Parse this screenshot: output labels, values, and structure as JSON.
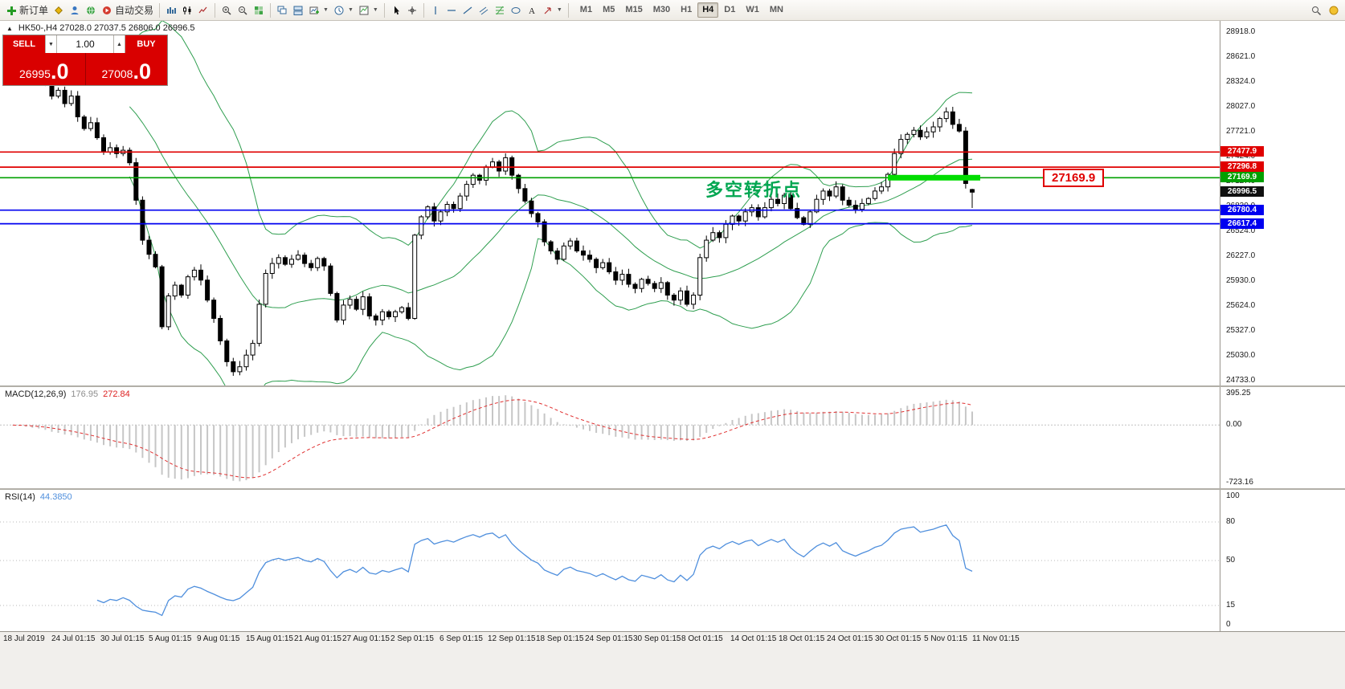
{
  "toolbar": {
    "left_items": [
      {
        "name": "new-order-button",
        "icon": "plus-icon",
        "label": "新订单"
      },
      {
        "name": "favorites-button",
        "icon": "diamond-icon"
      },
      {
        "name": "profile-button",
        "icon": "user-icon"
      },
      {
        "name": "community-profile-button",
        "icon": "globe-icon"
      },
      {
        "name": "autotrading-button",
        "icon": "autotrade-icon",
        "label": "自动交易"
      },
      {
        "type": "divider"
      },
      {
        "name": "bar-chart-button",
        "icon": "bar-chart-icon"
      },
      {
        "name": "candlestick-chart-button",
        "icon": "candle-chart-icon"
      },
      {
        "name": "line-chart-button",
        "icon": "line-chart-icon"
      },
      {
        "type": "divider"
      },
      {
        "name": "zoom-in-button",
        "icon": "zoom-in-icon"
      },
      {
        "name": "zoom-out-button",
        "icon": "zoom-out-icon"
      },
      {
        "name": "tile-windows-button",
        "icon": "tile-icon"
      },
      {
        "type": "divider"
      },
      {
        "name": "arrange-cascade-button",
        "icon": "cascade-icon"
      },
      {
        "name": "arrange-tile-button",
        "icon": "tile-h-icon"
      },
      {
        "name": "new-chart-button",
        "icon": "new-chart-icon",
        "caret": true
      },
      {
        "name": "period-button",
        "icon": "clock-icon",
        "caret": true
      },
      {
        "name": "template-button",
        "icon": "template-icon",
        "caret": true
      },
      {
        "type": "divider"
      },
      {
        "name": "cursor-button",
        "icon": "cursor-icon"
      },
      {
        "name": "crosshair-button",
        "icon": "crosshair-icon"
      },
      {
        "type": "divider"
      },
      {
        "name": "vertical-line-button",
        "icon": "vline-icon"
      },
      {
        "name": "horizontal-line-button",
        "icon": "hline-icon"
      },
      {
        "name": "trendline-button",
        "icon": "trendline-icon"
      },
      {
        "name": "channel-button",
        "icon": "channel-icon"
      },
      {
        "name": "fibonacci-button",
        "icon": "fibo-icon"
      },
      {
        "name": "shapes-button",
        "icon": "ellipse-icon"
      },
      {
        "name": "text-label-button",
        "icon": "text-icon"
      },
      {
        "name": "arrows-button",
        "icon": "arrow-icon",
        "caret": true
      },
      {
        "type": "divider"
      }
    ],
    "timeframes": [
      {
        "label": "M1"
      },
      {
        "label": "M5"
      },
      {
        "label": "M15"
      },
      {
        "label": "M30"
      },
      {
        "label": "H1"
      },
      {
        "label": "H4",
        "active": true
      },
      {
        "label": "D1"
      },
      {
        "label": "W1"
      },
      {
        "label": "MN"
      }
    ],
    "right_items": [
      {
        "name": "search-button",
        "icon": "search-icon"
      },
      {
        "name": "community-button",
        "icon": "community-icon"
      }
    ]
  },
  "chart_header": {
    "collapse_glyph": "▲",
    "symbol_info": "HK50-,H4  27028.0 27037.5 26806.0 26996.5"
  },
  "trade_panel": {
    "sell_label": "SELL",
    "buy_label": "BUY",
    "volume": "1.00",
    "step_down_glyph": "▼",
    "step_up_glyph": "▲",
    "sell_price_main": "26995",
    "sell_price_frac": ".0",
    "buy_price_main": "27008",
    "buy_price_frac": ".0"
  },
  "price_axis_labels": [
    "28918.0",
    "28621.0",
    "28324.0",
    "28027.0",
    "27721.0",
    "27424.0",
    "27127.0",
    "26830.0",
    "26524.0",
    "26227.0",
    "25930.0",
    "25624.0",
    "25327.0",
    "25030.0",
    "24733.0"
  ],
  "time_axis_labels": [
    "18 Jul 2019",
    "24 Jul 01:15",
    "30 Jul 01:15",
    "5 Aug 01:15",
    "9 Aug 01:15",
    "15 Aug 01:15",
    "21 Aug 01:15",
    "27 Aug 01:15",
    "2 Sep 01:15",
    "6 Sep 01:15",
    "12 Sep 01:15",
    "18 Sep 01:15",
    "24 Sep 01:15",
    "30 Sep 01:15",
    "8 Oct 01:15",
    "14 Oct 01:15",
    "18 Oct 01:15",
    "24 Oct 01:15",
    "30 Oct 01:15",
    "5 Nov 01:15",
    "11 Nov 01:15"
  ],
  "current_price_badge": {
    "text": "26996.5",
    "bg": "#101010"
  },
  "annotations": {
    "turning_point_text": "多空转折点",
    "price_callout": "27169.9",
    "highlight_bar": {
      "price": 27169.9,
      "start_index": 136,
      "end_index": 149,
      "color": "#00dd00"
    }
  },
  "macd_panel": {
    "label": "MACD(12,26,9)",
    "value1": "176.95",
    "value2": "272.84",
    "scale_labels": [
      "395.25",
      "0.00",
      "-723.16"
    ],
    "ylim": [
      -723.16,
      395.25
    ]
  },
  "rsi_panel": {
    "label": "RSI(14)",
    "value": "44.3850",
    "scale_labels": [
      "100",
      "80",
      "50",
      "15",
      "0"
    ],
    "level_lines": [
      80,
      50,
      15
    ]
  },
  "chart_data": {
    "type": "candlestick",
    "symbol": "HK50-",
    "timeframe": "H4",
    "title": "HK50-,H4",
    "ohlc_display": {
      "open": 27028.0,
      "high": 27037.5,
      "low": 26806.0,
      "close": 26996.5
    },
    "price_range": [
      24733.0,
      28918.0
    ],
    "closes": [
      28650,
      28560,
      28600,
      28480,
      28400,
      28440,
      28300,
      28150,
      28220,
      28060,
      28150,
      27900,
      27760,
      27830,
      27650,
      27480,
      27530,
      27460,
      27500,
      27350,
      26900,
      26420,
      26250,
      26100,
      25380,
      25750,
      25880,
      25760,
      25980,
      26060,
      25940,
      25700,
      25480,
      25210,
      24960,
      24840,
      24900,
      25040,
      25180,
      25650,
      26020,
      26140,
      26210,
      26130,
      26190,
      26240,
      26140,
      26090,
      26200,
      26110,
      25780,
      25460,
      25640,
      25710,
      25590,
      25740,
      25510,
      25460,
      25560,
      25500,
      25560,
      25610,
      25480,
      26480,
      26700,
      26820,
      26650,
      26760,
      26850,
      26800,
      26950,
      27090,
      27200,
      27140,
      27300,
      27360,
      27250,
      27410,
      27200,
      27040,
      26890,
      26740,
      26640,
      26400,
      26290,
      26190,
      26350,
      26410,
      26290,
      26240,
      26190,
      26090,
      26150,
      26040,
      25940,
      26010,
      25890,
      25840,
      25950,
      25900,
      25840,
      25910,
      25760,
      25700,
      25810,
      25650,
      25760,
      26210,
      26420,
      26510,
      26450,
      26610,
      26710,
      26650,
      26760,
      26810,
      26700,
      26810,
      26910,
      26860,
      26960,
      26800,
      26690,
      26610,
      26760,
      26910,
      27010,
      26950,
      27060,
      26900,
      26840,
      26790,
      26860,
      26920,
      27010,
      27060,
      27210,
      27460,
      27630,
      27690,
      27740,
      27660,
      27720,
      27780,
      27880,
      27960,
      27810,
      27730,
      27100,
      26996.5
    ],
    "horizontal_lines": [
      {
        "price": 27477.9,
        "color": "#e00000",
        "label": "27477.9"
      },
      {
        "price": 27296.8,
        "color": "#e00000",
        "label": "27296.8"
      },
      {
        "price": 27169.9,
        "color": "#00a000",
        "label": "27169.9"
      },
      {
        "price": 26780.4,
        "color": "#0000f0",
        "label": "26780.4"
      },
      {
        "price": 26617.4,
        "color": "#0000f0",
        "label": "26617.4"
      }
    ],
    "indicators": {
      "bollinger": {
        "period": 20,
        "deviation": 2,
        "color": "#2e9e4f"
      },
      "macd": {
        "fast": 12,
        "slow": 26,
        "signal": 9,
        "histogram_color": "#c6c6c6",
        "signal_color": "#e03030"
      },
      "rsi": {
        "period": 14,
        "color": "#4f8fdd"
      }
    }
  }
}
